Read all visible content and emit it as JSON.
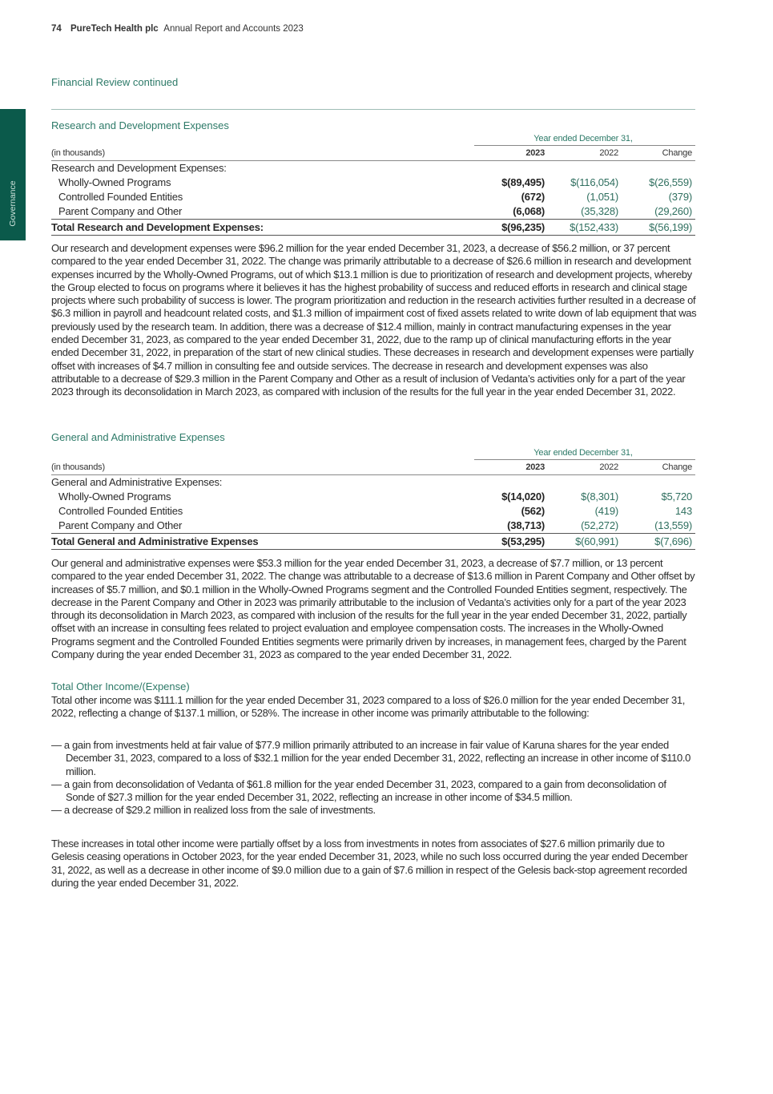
{
  "header": {
    "page_number": "74",
    "company": "PureTech Health plc",
    "report": "Annual Report and Accounts 2023"
  },
  "section_title": "Financial Review continued",
  "side_tab": "Governance",
  "colors": {
    "brand_green": "#0b5a4b",
    "heading_green": "#2d7a68"
  },
  "rd": {
    "title": "Research and Development Expenses",
    "year_header": "Year ended December 31,",
    "units": "(in thousands)",
    "cols": [
      "2023",
      "2022",
      "Change"
    ],
    "group_label": "Research and Development Expenses:",
    "rows": [
      {
        "label": "Wholly-Owned Programs",
        "v2023": "$(89,495)",
        "v2022": "$(116,054)",
        "change": "$(26,559)"
      },
      {
        "label": "Controlled Founded Entities",
        "v2023": "(672)",
        "v2022": "(1,051)",
        "change": "(379)"
      },
      {
        "label": "Parent Company and Other",
        "v2023": "(6,068)",
        "v2022": "(35,328)",
        "change": "(29,260)"
      }
    ],
    "total": {
      "label": "Total Research and Development Expenses:",
      "v2023": "$(96,235)",
      "v2022": "$(152,433)",
      "change": "$(56,199)"
    },
    "paragraph": "Our research and development expenses were $96.2 million for the year ended December 31, 2023, a decrease of $56.2 million, or 37 percent compared to the year ended December 31, 2022. The change was primarily attributable to a decrease of $26.6 million in research and development expenses incurred by the Wholly-Owned Programs, out of which $13.1 million is due to prioritization of research and development projects, whereby the Group elected to focus on programs where it believes it has the highest probability of success and reduced efforts in research and clinical stage projects where such probability of success is lower. The program prioritization and reduction in the research activities further resulted in a decrease of $6.3 million in payroll and headcount related costs, and $1.3 million of impairment cost of fixed assets related to write down of lab equipment that was previously used by the research team. In addition, there was a decrease of $12.4 million, mainly in contract manufacturing expenses in the year ended December 31, 2023, as compared to the year ended December 31, 2022, due to the ramp up of clinical manufacturing efforts in the year ended December 31, 2022, in preparation of the start of new clinical studies. These decreases in research and development expenses were partially offset with increases of $4.7 million in consulting fee and outside services. The decrease in research and development expenses was also attributable to a decrease of $29.3 million in the Parent Company and Other as a result of inclusion of Vedanta’s activities only for a part of the year 2023 through its deconsolidation in March 2023, as compared with inclusion of the results for the full year in the year ended December 31, 2022."
  },
  "ga": {
    "title": "General and Administrative Expenses",
    "year_header": "Year ended December 31,",
    "units": "(in thousands)",
    "cols": [
      "2023",
      "2022",
      "Change"
    ],
    "group_label": "General and Administrative Expenses:",
    "rows": [
      {
        "label": "Wholly-Owned Programs",
        "v2023": "$(14,020)",
        "v2022": "$(8,301)",
        "change": "$5,720"
      },
      {
        "label": "Controlled Founded Entities",
        "v2023": "(562)",
        "v2022": "(419)",
        "change": "143"
      },
      {
        "label": "Parent Company and Other",
        "v2023": "(38,713)",
        "v2022": "(52,272)",
        "change": "(13,559)"
      }
    ],
    "total": {
      "label": "Total General and Administrative Expenses",
      "v2023": "$(53,295)",
      "v2022": "$(60,991)",
      "change": "$(7,696)"
    },
    "paragraph": "Our general and administrative expenses were $53.3 million for the year ended December 31, 2023, a decrease of $7.7 million, or 13 percent compared to the year ended December 31, 2022. The change was attributable to a decrease of $13.6 million in Parent Company and Other offset by increases of $5.7 million, and $0.1 million in the Wholly-Owned Programs segment and the Controlled Founded Entities segment, respectively. The decrease in the Parent Company and Other in 2023 was primarily attributable to the inclusion of Vedanta’s activities only for a part of the year 2023 through its deconsolidation in March 2023, as compared with inclusion of the results for the full year in the year ended December 31, 2022, partially offset with an increase in consulting fees related to project evaluation and employee compensation costs. The increases in the Wholly-Owned Programs segment and the Controlled Founded Entities segments were primarily driven by increases, in management fees, charged by the Parent Company during the year ended December 31, 2023 as compared to the year ended December 31, 2022."
  },
  "other": {
    "title": "Total Other Income/(Expense)",
    "intro": "Total other income was $111.1 million for the year ended December 31, 2023 compared to a loss of $26.0 million for the year ended December 31, 2022, reflecting a change of $137.1 million, or 528%. The increase in other income was primarily attributable to the following:",
    "bullets": [
      "— a gain from investments held at fair value of $77.9 million primarily attributed to an increase in fair value of Karuna shares for the year ended December 31, 2023, compared to a loss of $32.1 million for the year ended December 31, 2022, reflecting an increase in other income of $110.0 million.",
      "— a gain from deconsolidation of Vedanta of $61.8 million for the year ended December 31, 2023, compared to a gain from deconsolidation of Sonde of $27.3 million for the year ended December 31, 2022, reflecting an increase in other income of $34.5 million.",
      "— a decrease of $29.2 million in realized loss from the sale of investments."
    ],
    "closing": "These increases in total other income were partially offset by a loss from investments in notes from associates of $27.6 million primarily due to Gelesis ceasing operations in October 2023, for the year ended December 31, 2023, while no such loss occurred during the year ended December 31, 2022, as well as a decrease in other income of $9.0 million due to a gain of $7.6 million in respect of the Gelesis back-stop agreement recorded during the year ended December 31, 2022."
  }
}
